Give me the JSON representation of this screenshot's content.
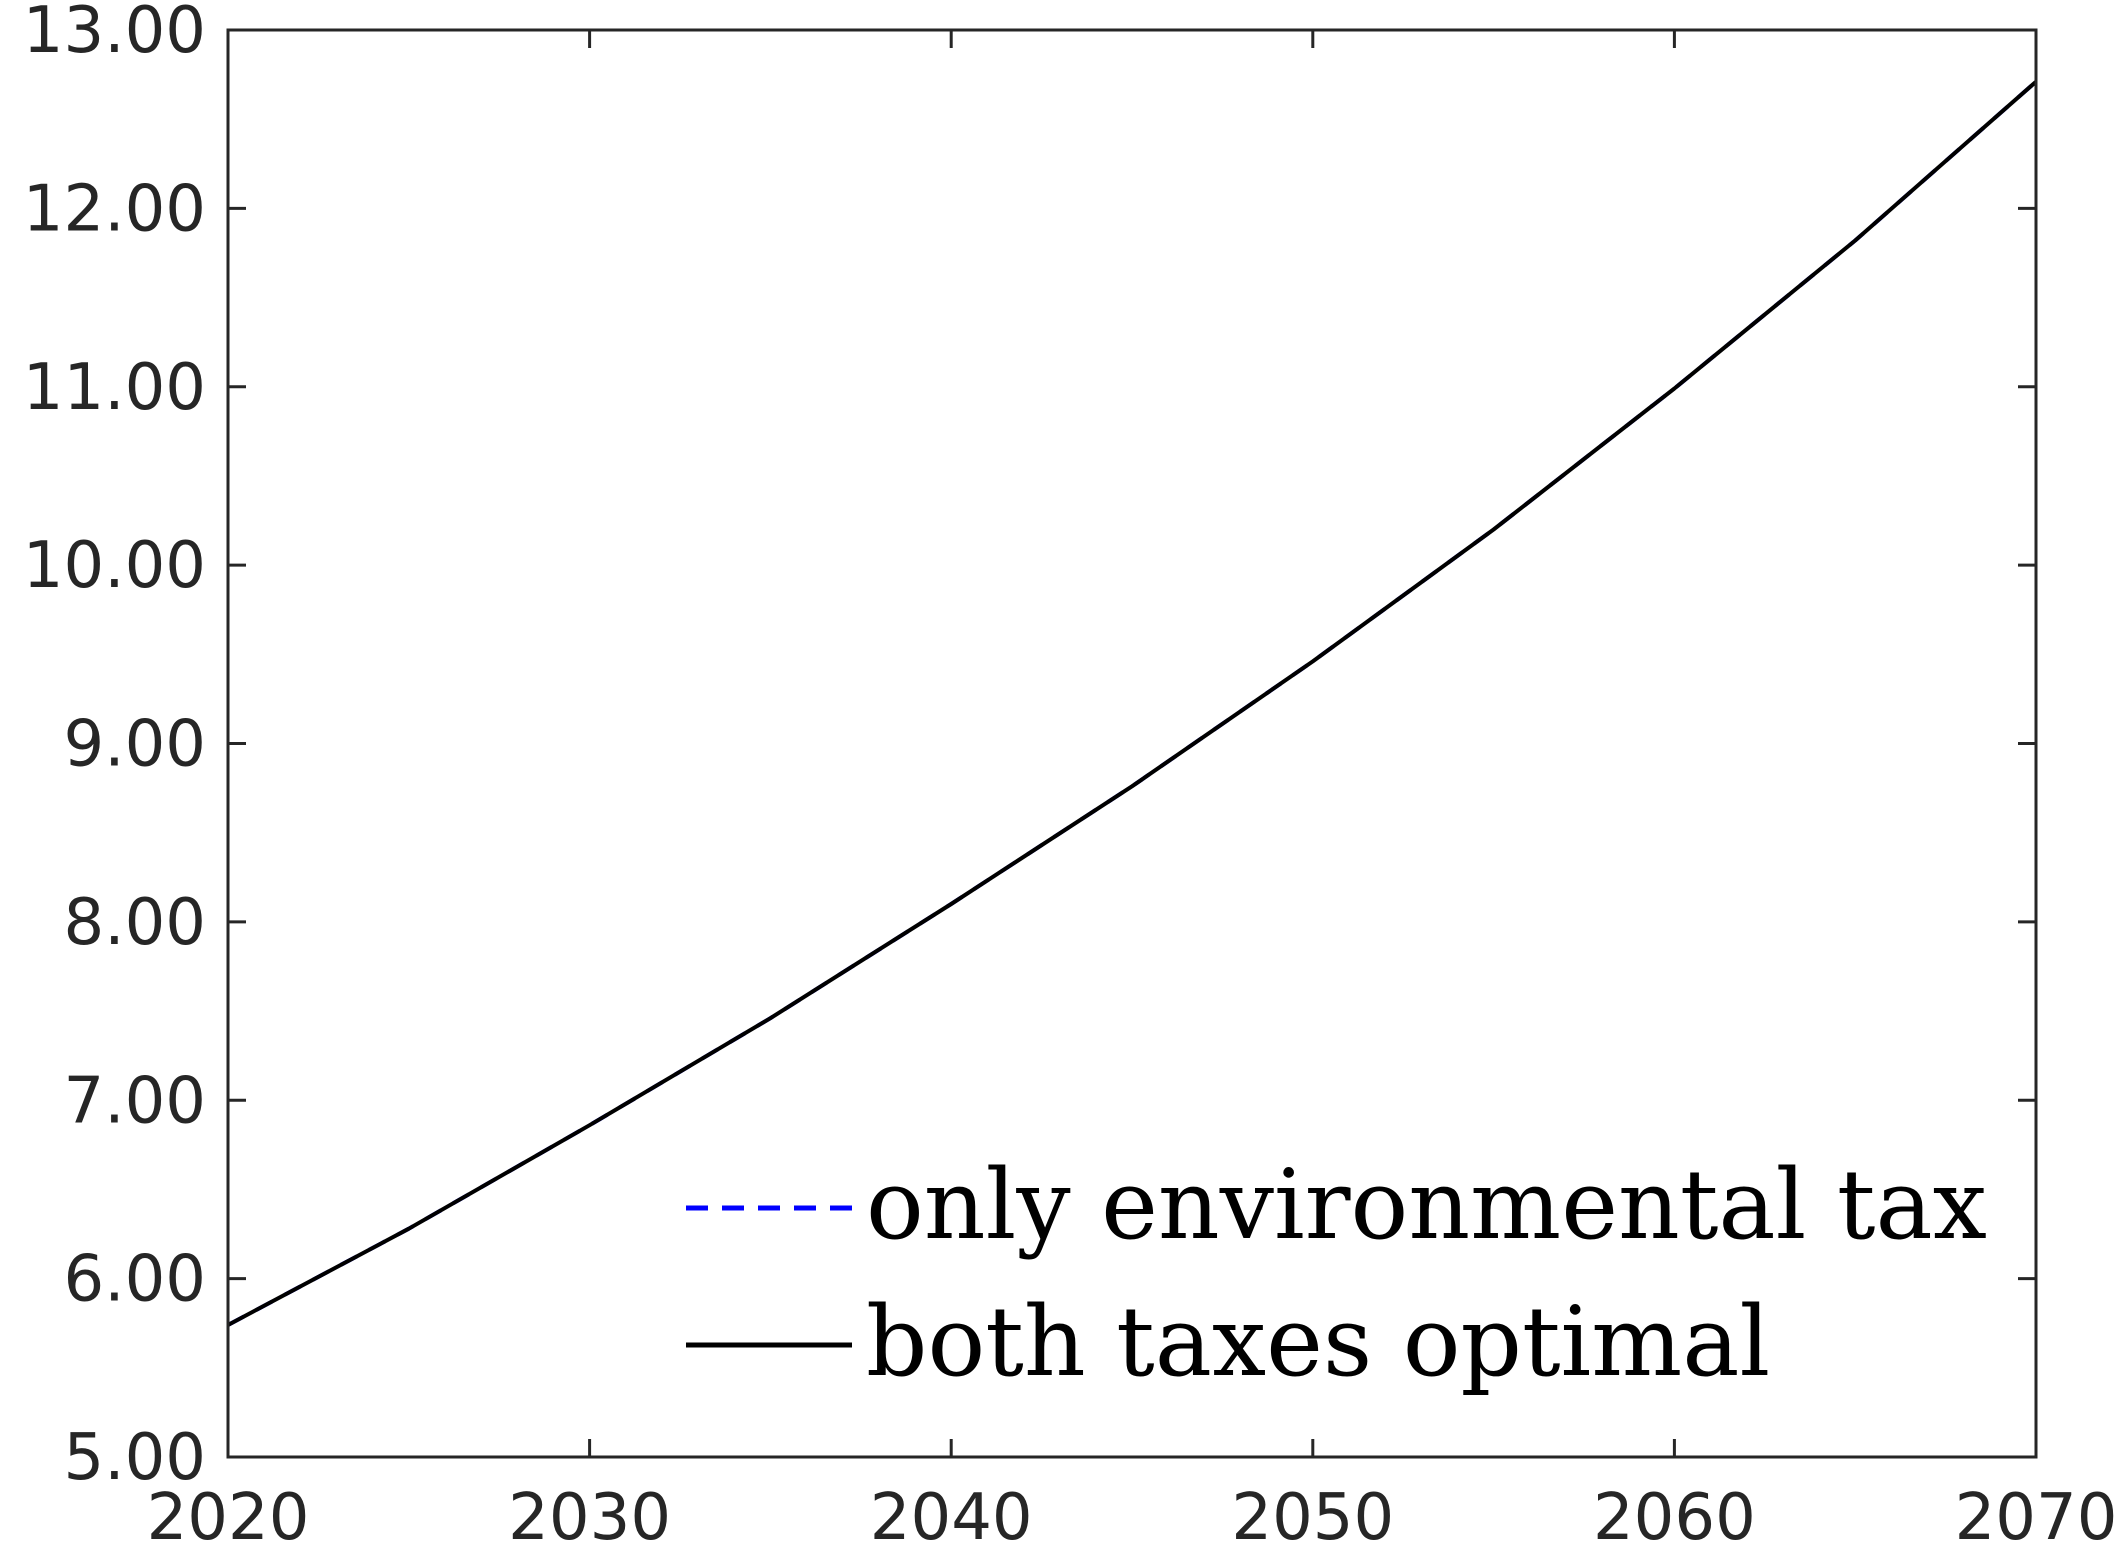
{
  "chart_data": {
    "type": "line",
    "title": "",
    "xlabel": "",
    "ylabel": "",
    "xlim": [
      2020,
      2070
    ],
    "ylim": [
      5,
      13
    ],
    "x_ticks": [
      2020,
      2030,
      2040,
      2050,
      2060,
      2070
    ],
    "x_tick_labels": [
      "2020",
      "2030",
      "2040",
      "2050",
      "2060",
      "2070"
    ],
    "y_ticks": [
      5,
      6,
      7,
      8,
      9,
      10,
      11,
      12,
      13
    ],
    "y_tick_labels": [
      "5.00",
      "6.00",
      "7.00",
      "8.00",
      "9.00",
      "10.00",
      "11.00",
      "12.00",
      "13.00"
    ],
    "grid": false,
    "legend_position": "bottom-right",
    "series": [
      {
        "name": "only environmental tax",
        "style": "dashed",
        "color": "#0000ff",
        "x": [
          2020,
          2025,
          2030,
          2035,
          2040,
          2045,
          2050,
          2055,
          2060,
          2065,
          2070
        ],
        "y": [
          5.74,
          6.28,
          6.86,
          7.46,
          8.1,
          8.76,
          9.46,
          10.2,
          10.99,
          11.82,
          12.71
        ]
      },
      {
        "name": "both taxes optimal",
        "style": "solid",
        "color": "#000000",
        "x": [
          2020,
          2025,
          2030,
          2035,
          2040,
          2045,
          2050,
          2055,
          2060,
          2065,
          2070
        ],
        "y": [
          5.74,
          6.28,
          6.86,
          7.46,
          8.1,
          8.76,
          9.46,
          10.2,
          10.99,
          11.82,
          12.71
        ]
      }
    ]
  }
}
